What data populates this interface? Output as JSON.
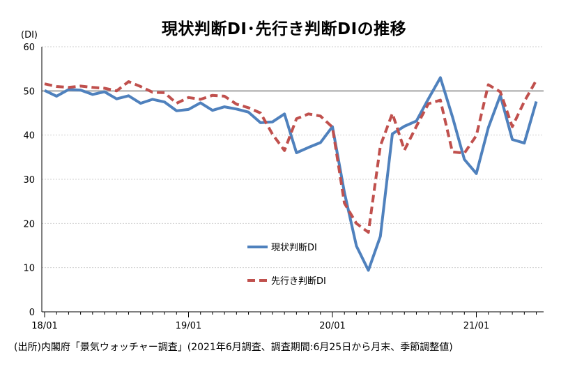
{
  "chart_data": {
    "type": "line",
    "title": "現状判断DI･先行き判断DIの推移",
    "yunit": "(DI)",
    "ylim": [
      0,
      60
    ],
    "yticks": [
      0,
      10,
      20,
      30,
      40,
      50,
      60
    ],
    "x_tick_labels": [
      "18/01",
      "19/01",
      "20/01",
      "21/01"
    ],
    "x": [
      "18/01",
      "18/02",
      "18/03",
      "18/04",
      "18/05",
      "18/06",
      "18/07",
      "18/08",
      "18/09",
      "18/10",
      "18/11",
      "18/12",
      "19/01",
      "19/02",
      "19/03",
      "19/04",
      "19/05",
      "19/06",
      "19/07",
      "19/08",
      "19/09",
      "19/10",
      "19/11",
      "19/12",
      "20/01",
      "20/02",
      "20/03",
      "20/04",
      "20/05",
      "20/06",
      "20/07",
      "20/08",
      "20/09",
      "20/10",
      "20/11",
      "20/12",
      "21/01",
      "21/02",
      "21/03",
      "21/04",
      "21/05",
      "21/06"
    ],
    "reference_line": 50,
    "grid": true,
    "series": [
      {
        "name": "現状判断DI",
        "color": "#4F81BD",
        "style": "solid",
        "values": [
          50.1,
          48.8,
          50.3,
          50.2,
          49.2,
          49.8,
          48.2,
          48.9,
          47.2,
          48.1,
          47.5,
          45.5,
          45.8,
          47.3,
          45.6,
          46.4,
          45.9,
          45.2,
          42.8,
          43.0,
          44.8,
          36.0,
          37.2,
          38.3,
          41.9,
          27.0,
          14.9,
          9.4,
          17.1,
          40.3,
          42.0,
          43.2,
          48.2,
          53.0,
          44.2,
          34.5,
          31.3,
          41.7,
          49.0,
          39.0,
          38.2,
          47.6
        ]
      },
      {
        "name": "先行き判断DI",
        "color": "#C0504D",
        "style": "dashed",
        "values": [
          51.6,
          51.0,
          50.8,
          51.1,
          50.8,
          50.6,
          50.0,
          52.1,
          51.0,
          49.7,
          49.6,
          47.2,
          48.5,
          48.1,
          49.0,
          48.8,
          47.0,
          46.2,
          45.0,
          40.2,
          36.5,
          43.7,
          44.8,
          44.3,
          41.8,
          24.6,
          20.0,
          18.0,
          37.6,
          44.9,
          36.6,
          42.0,
          47.1,
          47.9,
          36.2,
          35.9,
          39.9,
          51.4,
          49.8,
          41.9,
          47.6,
          52.4
        ]
      }
    ],
    "legend_position": "center (inside plot)"
  },
  "footnote": "(出所)内閣府「景気ウォッチャー調査」(2021年6月調査、調査期間:6月25日から月末、季節調整値)"
}
